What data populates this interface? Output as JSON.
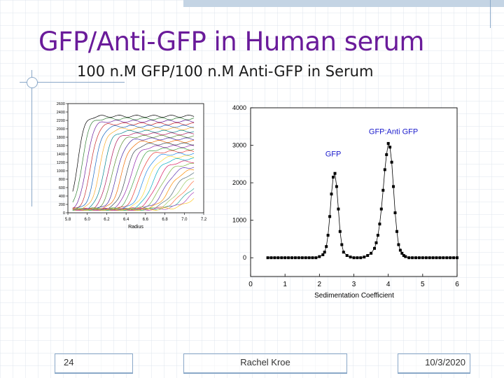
{
  "slide": {
    "title": "GFP/Anti-GFP in Human serum",
    "subtitle": "100 n.M GFP/100 n.M Anti-GFP in Serum",
    "footer": {
      "page": "24",
      "author": "Rachel Kroe",
      "date": "10/3/2020"
    }
  },
  "chart_data": [
    {
      "type": "line",
      "xlabel": "Radius",
      "ylabel": "",
      "xlim": [
        5.8,
        7.2
      ],
      "ylim": [
        0,
        2600
      ],
      "xticks": [
        "5.8",
        "6.0",
        "6.2",
        "6.4",
        "6.6",
        "6.8",
        "7.0",
        "7.2"
      ],
      "yticks": [
        "0",
        "200",
        "400",
        "600",
        "800",
        "1000",
        "1200",
        "1400",
        "1600",
        "1800",
        "2000",
        "2200",
        "2400",
        "2600"
      ],
      "series_description": "sedimentation velocity scans (many overlaid colored curves)"
    },
    {
      "type": "line",
      "xlabel": "Sedimentation Coefficient",
      "ylabel": "",
      "xlim": [
        0,
        6
      ],
      "ylim": [
        -500,
        4000
      ],
      "xticks": [
        "0",
        "1",
        "2",
        "3",
        "4",
        "5",
        "6"
      ],
      "yticks": [
        "0",
        "1000",
        "2000",
        "3000",
        "4000"
      ],
      "annotations": [
        {
          "text": "GFP",
          "x": 2.4,
          "y": 2700
        },
        {
          "text": "GFP:Anti GFP",
          "x": 4.15,
          "y": 3300
        }
      ],
      "series": [
        {
          "x": [
            0.5,
            0.6,
            0.7,
            0.8,
            0.9,
            1.0,
            1.1,
            1.2,
            1.3,
            1.4,
            1.5,
            1.6,
            1.7,
            1.8,
            1.9,
            2.0,
            2.1,
            2.15,
            2.2,
            2.25,
            2.3,
            2.35,
            2.4,
            2.45,
            2.5,
            2.55,
            2.6,
            2.65,
            2.7,
            2.8,
            2.9,
            3.0,
            3.1,
            3.2,
            3.3,
            3.4,
            3.5,
            3.6,
            3.65,
            3.7,
            3.75,
            3.8,
            3.85,
            3.9,
            3.95,
            4.0,
            4.05,
            4.1,
            4.15,
            4.2,
            4.25,
            4.3,
            4.35,
            4.4,
            4.45,
            4.5,
            4.6,
            4.7,
            4.8,
            4.9,
            5.0,
            5.1,
            5.2,
            5.3,
            5.4,
            5.5,
            5.6,
            5.7,
            5.8,
            5.9,
            6.0
          ],
          "y": [
            0,
            0,
            0,
            0,
            0,
            0,
            0,
            0,
            0,
            0,
            0,
            0,
            0,
            0,
            0,
            30,
            80,
            150,
            300,
            600,
            1100,
            1700,
            2150,
            2250,
            1900,
            1300,
            700,
            350,
            150,
            60,
            20,
            0,
            0,
            0,
            20,
            60,
            120,
            250,
            400,
            600,
            900,
            1300,
            1800,
            2350,
            2750,
            3050,
            2950,
            2550,
            1900,
            1200,
            700,
            350,
            200,
            120,
            60,
            30,
            0,
            0,
            0,
            0,
            0,
            0,
            0,
            0,
            0,
            0,
            0,
            0,
            0,
            0,
            0
          ]
        }
      ]
    }
  ]
}
